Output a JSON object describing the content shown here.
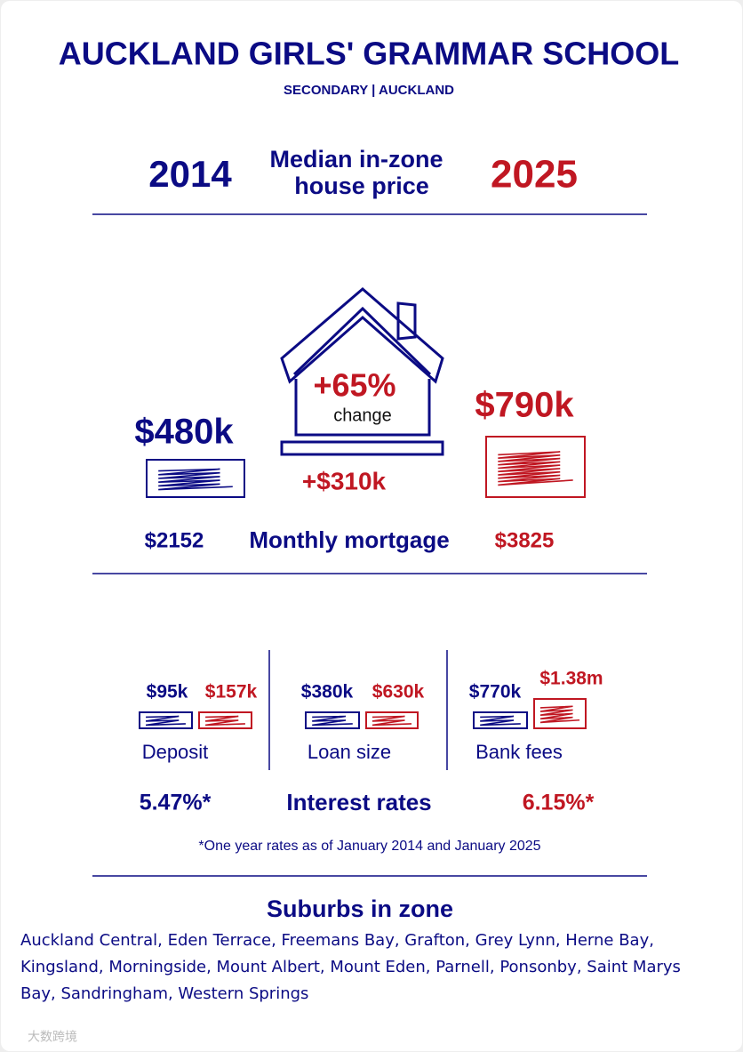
{
  "header": {
    "title": "AUCKLAND GIRLS' GRAMMAR SCHOOL",
    "subtitle": "SECONDARY | AUCKLAND"
  },
  "comparison": {
    "year_from": "2014",
    "label": [
      "Median in-zone",
      "house price"
    ],
    "year_to": "2025"
  },
  "price": {
    "from": "$480k",
    "to": "$790k",
    "change_pct": "+65%",
    "change_label": "change",
    "change_amount": "+$310k"
  },
  "mortgage": {
    "from": "$2152",
    "label": "Monthly mortgage",
    "to": "$3825"
  },
  "costs": [
    {
      "from": "$95k",
      "to": "$157k",
      "label": "Deposit"
    },
    {
      "from": "$380k",
      "to": "$630k",
      "label": "Loan size"
    },
    {
      "from": "$770k",
      "to": "$1.38m",
      "label": "Bank fees"
    }
  ],
  "interest": {
    "from": "5.47%*",
    "label": "Interest rates",
    "to": "6.15%*"
  },
  "footnote": "*One year rates as of January 2014 and January 2025",
  "suburbs": {
    "title": "Suburbs in zone",
    "list": "Auckland Central, Eden Terrace, Freemans Bay, Grafton, Grey Lynn, Herne Bay, Kingsland, Morningside, Mount Albert, Mount Eden, Parnell, Ponsonby, Saint Marys Bay, Sandringham, Western Springs"
  },
  "watermark": "大数跨境"
}
